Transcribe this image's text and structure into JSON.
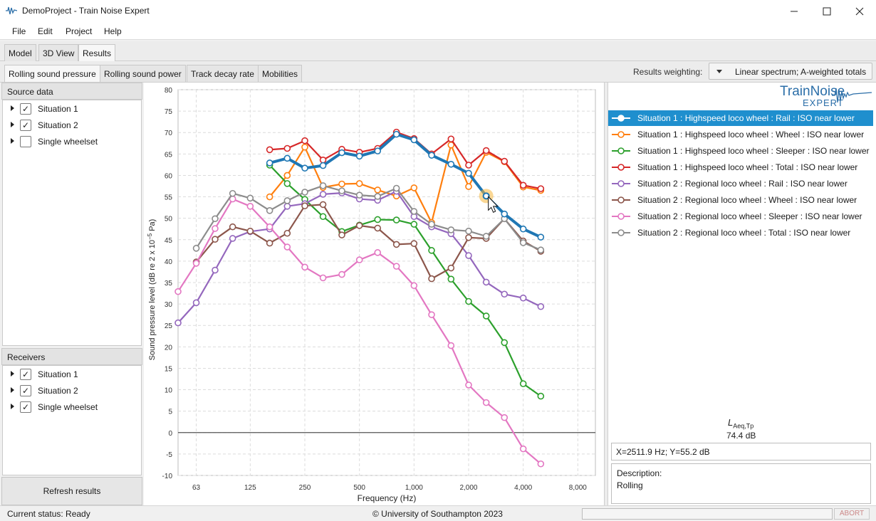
{
  "window": {
    "title": "DemoProject - Train Noise Expert"
  },
  "menu": [
    "File",
    "Edit",
    "Project",
    "Help"
  ],
  "main_tabs": [
    "Model",
    "3D View",
    "Results"
  ],
  "result_tabs": [
    "Rolling sound pressure",
    "Rolling sound power",
    "Track decay rate",
    "Mobilities"
  ],
  "weighting": {
    "label": "Results weighting:",
    "value": "Linear spectrum; A-weighted totals"
  },
  "source_data": {
    "header": "Source data",
    "items": [
      {
        "label": "Situation 1",
        "checked": true
      },
      {
        "label": "Situation 2",
        "checked": true
      },
      {
        "label": "Single wheelset",
        "checked": false
      }
    ]
  },
  "receivers": {
    "header": "Receivers",
    "items": [
      {
        "label": "Situation 1",
        "checked": true
      },
      {
        "label": "Situation 2",
        "checked": true
      },
      {
        "label": "Single wheelset",
        "checked": true
      }
    ]
  },
  "refresh_label": "Refresh results",
  "logo": {
    "line1": "TrainNoise",
    "line2": "EXPERT"
  },
  "laeq": {
    "label": "L",
    "subscript": "Aeq,Tp",
    "value": "74.4 dB"
  },
  "cursor_readout": "X=2511.9 Hz;  Y=55.2 dB",
  "description": {
    "label": "Description:",
    "value": "Rolling"
  },
  "status": {
    "text": "Current status: Ready",
    "copyright": "© University of Southampton 2023",
    "abort": "ABORT"
  },
  "chart_data": {
    "type": "line",
    "xlabel": "Frequency (Hz)",
    "ylabel": "Sound pressure level (dB re 2 x 10",
    "ylabel_sup": "−5",
    "ylabel_end": " Pa)",
    "x_scale": "log",
    "xlim": [
      50,
      10000
    ],
    "ylim": [
      -10,
      80
    ],
    "grid": true,
    "x_ticks": [
      {
        "v": 63,
        "label": "63"
      },
      {
        "v": 125,
        "label": "125"
      },
      {
        "v": 250,
        "label": "250"
      },
      {
        "v": 500,
        "label": "500"
      },
      {
        "v": 1000,
        "label": "1,000"
      },
      {
        "v": 2000,
        "label": "2,000"
      },
      {
        "v": 4000,
        "label": "4,000"
      },
      {
        "v": 8000,
        "label": "8,000"
      }
    ],
    "y_ticks": [
      -10,
      -5,
      0,
      5,
      10,
      15,
      20,
      25,
      30,
      35,
      40,
      45,
      50,
      55,
      60,
      65,
      70,
      75,
      80
    ],
    "series": [
      {
        "name": "Situation 1 : Highspeed loco wheel : Rail : ISO near lower",
        "color": "#1f77b4",
        "selected": true,
        "x": [
          160,
          200,
          250,
          315,
          400,
          500,
          630,
          800,
          1000,
          1250,
          1600,
          2000,
          2500,
          3150,
          4000,
          5000
        ],
        "y": [
          62.9,
          64.0,
          61.7,
          62.3,
          65.3,
          64.5,
          65.7,
          69.6,
          68.3,
          64.7,
          62.6,
          60.5,
          55.2,
          51.0,
          47.5,
          45.6
        ]
      },
      {
        "name": "Situation 1 : Highspeed loco wheel : Wheel : ISO near lower",
        "color": "#ff7f0e",
        "x": [
          160,
          200,
          250,
          315,
          400,
          500,
          630,
          800,
          1000,
          1250,
          1600,
          2000,
          2500,
          3150,
          4000,
          5000
        ],
        "y": [
          55.0,
          60.0,
          66.6,
          57.2,
          58.0,
          58.1,
          56.6,
          55.2,
          57.1,
          49.0,
          67.1,
          57.4,
          65.4,
          63.2,
          57.3,
          56.5
        ]
      },
      {
        "name": "Situation 1 : Highspeed loco wheel : Sleeper : ISO near lower",
        "color": "#2ca02c",
        "x": [
          160,
          200,
          250,
          315,
          400,
          500,
          630,
          800,
          1000,
          1250,
          1600,
          2000,
          2500,
          3150,
          4000,
          5000
        ],
        "y": [
          62.4,
          58.1,
          54.4,
          50.4,
          46.9,
          48.4,
          49.7,
          49.6,
          48.6,
          42.5,
          35.8,
          30.6,
          27.2,
          21.0,
          11.4,
          8.5
        ]
      },
      {
        "name": "Situation 1 : Highspeed loco wheel : Total : ISO near lower",
        "color": "#d62728",
        "x": [
          160,
          200,
          250,
          315,
          400,
          500,
          630,
          800,
          1000,
          1250,
          1600,
          2000,
          2500,
          3150,
          4000,
          5000
        ],
        "y": [
          66.0,
          66.3,
          68.1,
          63.6,
          66.1,
          65.4,
          66.3,
          70.1,
          68.6,
          65.0,
          68.5,
          62.4,
          65.8,
          63.3,
          57.7,
          56.9
        ]
      },
      {
        "name": "Situation 2 : Regional loco wheel : Rail : ISO near lower",
        "color": "#9467bd",
        "x": [
          50,
          63,
          80,
          100,
          125,
          160,
          200,
          250,
          315,
          400,
          500,
          630,
          800,
          1000,
          1250,
          1600,
          2000,
          2500,
          3150,
          4000,
          5000
        ],
        "y": [
          25.6,
          30.3,
          37.9,
          45.3,
          46.9,
          47.5,
          52.8,
          53.4,
          55.6,
          55.9,
          54.5,
          54.2,
          56.3,
          50.4,
          48.0,
          46.4,
          41.3,
          35.1,
          32.3,
          31.4,
          29.4
        ]
      },
      {
        "name": "Situation 2 : Regional loco wheel : Wheel : ISO near lower",
        "color": "#8c564b",
        "x": [
          63,
          80,
          100,
          125,
          160,
          200,
          250,
          315,
          400,
          500,
          630,
          800,
          1000,
          1250,
          1600,
          2000,
          2500,
          3150,
          4000,
          5000
        ],
        "y": [
          39.8,
          45.1,
          48.0,
          47.0,
          44.2,
          46.5,
          52.9,
          53.2,
          46.1,
          48.3,
          47.7,
          43.9,
          44.1,
          35.9,
          38.4,
          45.5,
          45.3,
          49.9,
          44.7,
          42.3
        ]
      },
      {
        "name": "Situation 2 : Regional loco wheel : Sleeper : ISO near lower",
        "color": "#e377c2",
        "x": [
          50,
          63,
          80,
          100,
          125,
          160,
          200,
          250,
          315,
          400,
          500,
          630,
          800,
          1000,
          1250,
          1600,
          2000,
          2500,
          3150,
          4000,
          5000
        ],
        "y": [
          32.9,
          39.5,
          47.6,
          54.5,
          52.8,
          48.0,
          43.3,
          38.6,
          36.1,
          36.9,
          40.3,
          42.0,
          38.8,
          34.3,
          27.5,
          20.3,
          11.1,
          7.0,
          3.5,
          -3.8,
          -7.3
        ]
      },
      {
        "name": "Situation 2 : Regional loco wheel : Total : ISO near lower",
        "color": "#8c8c8c",
        "x": [
          63,
          80,
          100,
          125,
          160,
          200,
          250,
          315,
          400,
          500,
          630,
          800,
          1000,
          1250,
          1600,
          2000,
          2500,
          3150,
          4000,
          5000
        ],
        "y": [
          43.0,
          49.9,
          55.8,
          54.7,
          51.8,
          54.1,
          56.1,
          57.6,
          56.4,
          55.4,
          55.1,
          57.0,
          51.6,
          48.6,
          47.3,
          47.0,
          45.8,
          49.9,
          44.3,
          42.6
        ]
      }
    ]
  }
}
